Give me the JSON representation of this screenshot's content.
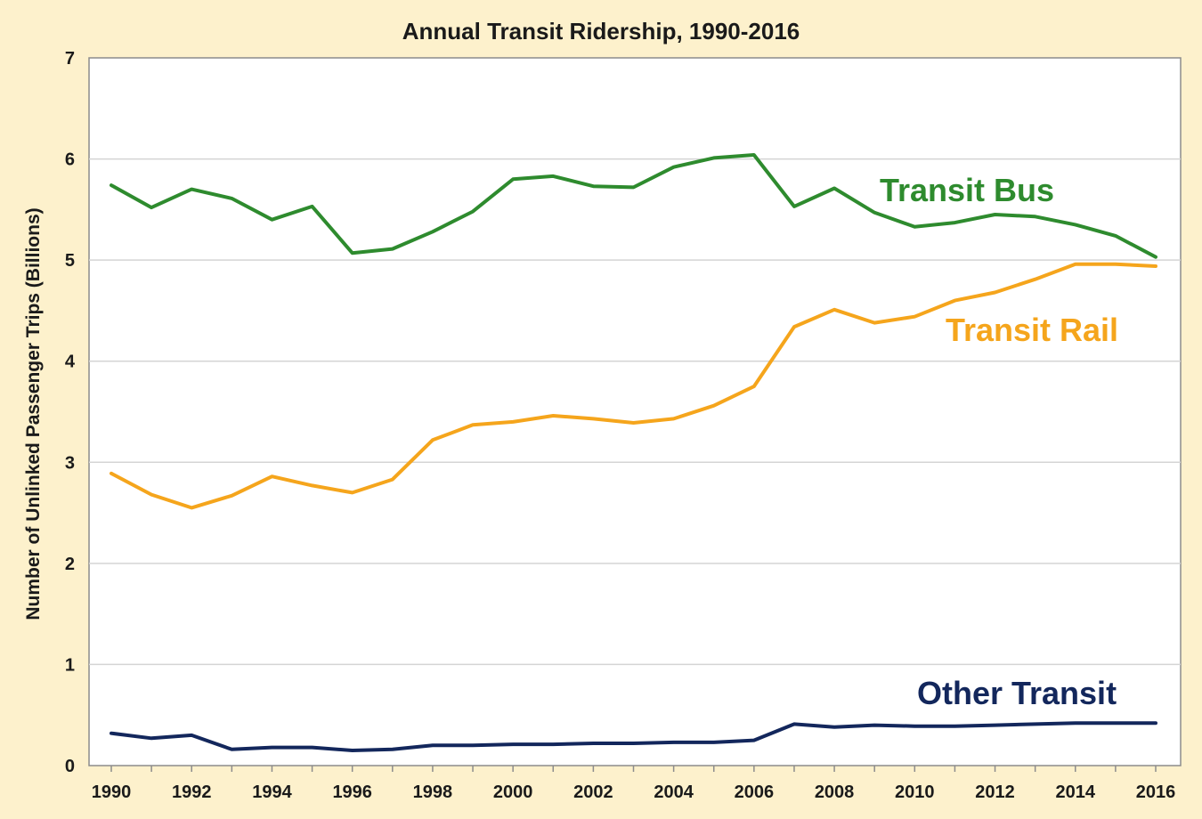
{
  "chart_data": {
    "type": "line",
    "title": "Annual Transit Ridership, 1990-2016",
    "xlabel": "",
    "ylabel": "Number of Unlinked Passenger Trips (Billions)",
    "ylim": [
      0,
      7
    ],
    "yticks": [
      0,
      1,
      2,
      3,
      4,
      5,
      6,
      7
    ],
    "xlim": [
      1990,
      2016
    ],
    "xticks": [
      1990,
      1992,
      1994,
      1996,
      1998,
      2000,
      2002,
      2004,
      2006,
      2008,
      2010,
      2012,
      2014,
      2016
    ],
    "grid": true,
    "legend": "inline labels",
    "x": [
      1990,
      1991,
      1992,
      1993,
      1994,
      1995,
      1996,
      1997,
      1998,
      1999,
      2000,
      2001,
      2002,
      2003,
      2004,
      2005,
      2006,
      2007,
      2008,
      2009,
      2010,
      2011,
      2012,
      2013,
      2014,
      2015,
      2016
    ],
    "series": [
      {
        "name": "Transit Bus",
        "color": "#2e8b2e",
        "values": [
          5.74,
          5.52,
          5.7,
          5.61,
          5.4,
          5.53,
          5.07,
          5.11,
          5.28,
          5.48,
          5.8,
          5.83,
          5.73,
          5.72,
          5.92,
          6.01,
          6.04,
          5.53,
          5.71,
          5.47,
          5.33,
          5.37,
          5.45,
          5.43,
          5.35,
          5.24,
          5.03
        ]
      },
      {
        "name": "Transit Rail",
        "color": "#f5a51c",
        "values": [
          2.89,
          2.68,
          2.55,
          2.67,
          2.86,
          2.77,
          2.7,
          2.83,
          3.22,
          3.37,
          3.4,
          3.46,
          3.43,
          3.39,
          3.43,
          3.56,
          3.75,
          4.34,
          4.51,
          4.38,
          4.44,
          4.6,
          4.68,
          4.81,
          4.96,
          4.96,
          4.94
        ]
      },
      {
        "name": "Other Transit",
        "color": "#13275c",
        "values": [
          0.32,
          0.27,
          0.3,
          0.16,
          0.18,
          0.18,
          0.15,
          0.16,
          0.2,
          0.2,
          0.21,
          0.21,
          0.22,
          0.22,
          0.23,
          0.23,
          0.25,
          0.41,
          0.38,
          0.4,
          0.39,
          0.39,
          0.4,
          0.41,
          0.42,
          0.42,
          0.42
        ]
      }
    ]
  }
}
